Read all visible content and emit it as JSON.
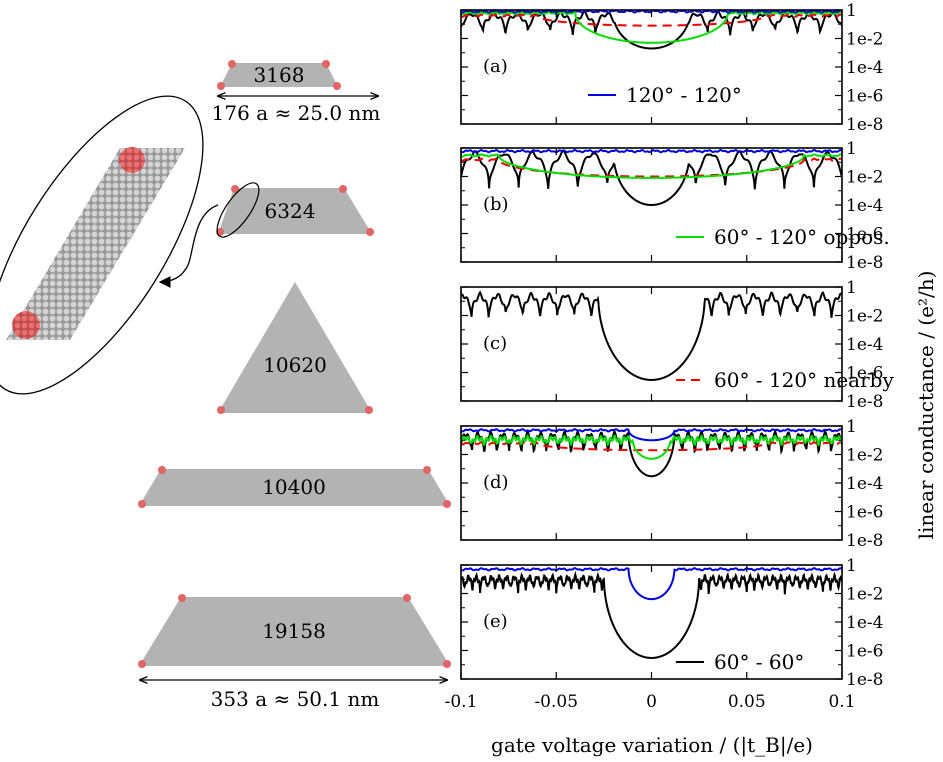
{
  "figure": {
    "xlabel": "gate voltage variation / (|t_B|/e)",
    "ylabel": "linear conductance / (e²/h)"
  },
  "flakes": [
    {
      "count": "3168",
      "dims": "176 a ≈ 25.0 nm"
    },
    {
      "count": "6324"
    },
    {
      "count": "10620"
    },
    {
      "count": "10400"
    },
    {
      "count": "19158",
      "dims": "353 a ≈ 50.1 nm"
    }
  ],
  "colors": {
    "black": "#000000",
    "blue": "#0000dd",
    "red": "#ee0000",
    "green": "#00dd00",
    "flake": "#b3b3b3",
    "corner": "#e06666"
  },
  "chart_data": [
    {
      "type": "line",
      "panel": "(a)",
      "xlim": [
        -0.1,
        0.1
      ],
      "ylim": [
        "1e-8",
        "1"
      ],
      "yscale": "log",
      "xticks": [
        "-0.1",
        "-0.05",
        "0",
        "0.05",
        "0.1"
      ],
      "yticks": [
        "1",
        "1e-2",
        "1e-4",
        "1e-6",
        "1e-8"
      ],
      "legend": {
        "label": "120° - 120°",
        "color": "blue",
        "position": "bottom-center"
      },
      "series": [
        {
          "color": "black",
          "base": 0.6,
          "period": 0.0118,
          "dip_min": 0.01,
          "gap_halfwidth": 0.02,
          "gap_min": 0.002
        },
        {
          "color": "red",
          "dashed": true,
          "base": 0.4,
          "gap_halfwidth": 0.06,
          "gap_min": 0.08
        },
        {
          "color": "green",
          "base": 0.6,
          "gap_halfwidth": 0.04,
          "gap_min": 0.005
        },
        {
          "color": "blue",
          "base": 0.8
        }
      ]
    },
    {
      "type": "line",
      "panel": "(b)",
      "xlim": [
        -0.1,
        0.1
      ],
      "ylim": [
        "1e-8",
        "1"
      ],
      "yscale": "log",
      "xticks": [
        "-0.1",
        "-0.05",
        "0",
        "0.05",
        "0.1"
      ],
      "yticks": [
        "1",
        "1e-2",
        "1e-4",
        "1e-6",
        "1e-8"
      ],
      "legend": {
        "label": "60° - 120° oppos.",
        "color": "green",
        "position": "bottom-right"
      },
      "series": [
        {
          "color": "black",
          "base": 0.5,
          "period": 0.0155,
          "dip_min": 0.0003,
          "gap_halfwidth": 0.02,
          "gap_min": 0.0001
        },
        {
          "color": "red",
          "dashed": true,
          "base": 0.15,
          "gap_halfwidth": 0.08,
          "gap_min": 0.01
        },
        {
          "color": "green",
          "base": 0.3,
          "gap_halfwidth": 0.08,
          "gap_min": 0.008
        },
        {
          "color": "blue",
          "base": 0.6
        }
      ]
    },
    {
      "type": "line",
      "panel": "(c)",
      "xlim": [
        -0.1,
        0.1
      ],
      "ylim": [
        "1e-8",
        "1"
      ],
      "yscale": "log",
      "xticks": [
        "-0.1",
        "-0.05",
        "0",
        "0.05",
        "0.1"
      ],
      "yticks": [
        "1",
        "1e-2",
        "1e-4",
        "1e-6",
        "1e-8"
      ],
      "series": [
        {
          "color": "black",
          "base": 0.3,
          "period": 0.009,
          "dip_min": 0.003,
          "gap_halfwidth": 0.028,
          "gap_min": 3e-07
        }
      ]
    },
    {
      "type": "line",
      "panel": "(d)",
      "xlim": [
        -0.1,
        0.1
      ],
      "ylim": [
        "1e-8",
        "1"
      ],
      "yscale": "log",
      "xticks": [
        "-0.1",
        "-0.05",
        "0",
        "0.05",
        "0.1"
      ],
      "yticks": [
        "1",
        "1e-2",
        "1e-4",
        "1e-6",
        "1e-8"
      ],
      "legend": {
        "label": "60° - 120° nearby",
        "color": "red",
        "dashed": true,
        "position": "bottom-right"
      },
      "series": [
        {
          "color": "black",
          "base": 0.3,
          "period": 0.0065,
          "dip_min": 0.005,
          "gap_halfwidth": 0.012,
          "gap_min": 0.0003
        },
        {
          "color": "red",
          "dashed": true,
          "base": 0.06,
          "gap_halfwidth": 0.06,
          "gap_min": 0.02
        },
        {
          "color": "green",
          "base": 0.15,
          "period": 0.0065,
          "dip_min": 0.04,
          "gap_halfwidth": 0.01,
          "gap_min": 0.005
        },
        {
          "color": "blue",
          "base": 0.5,
          "gap_halfwidth": 0.012,
          "gap_min": 0.1
        }
      ]
    },
    {
      "type": "line",
      "panel": "(e)",
      "xlim": [
        -0.1,
        0.1
      ],
      "ylim": [
        "1e-8",
        "1"
      ],
      "yscale": "log",
      "xticks": [
        "-0.1",
        "-0.05",
        "0",
        "0.05",
        "0.1"
      ],
      "yticks": [
        "1",
        "1e-2",
        "1e-4",
        "1e-6",
        "1e-8"
      ],
      "legend": {
        "label": "60° - 60°",
        "color": "black",
        "position": "bottom-right"
      },
      "series": [
        {
          "color": "black",
          "base": 0.15,
          "period": 0.004,
          "dip_min": 0.008,
          "gap_halfwidth": 0.025,
          "gap_min": 3e-07
        },
        {
          "color": "blue",
          "base": 0.5,
          "gap_halfwidth": 0.012,
          "gap_min": 0.004
        }
      ]
    }
  ]
}
